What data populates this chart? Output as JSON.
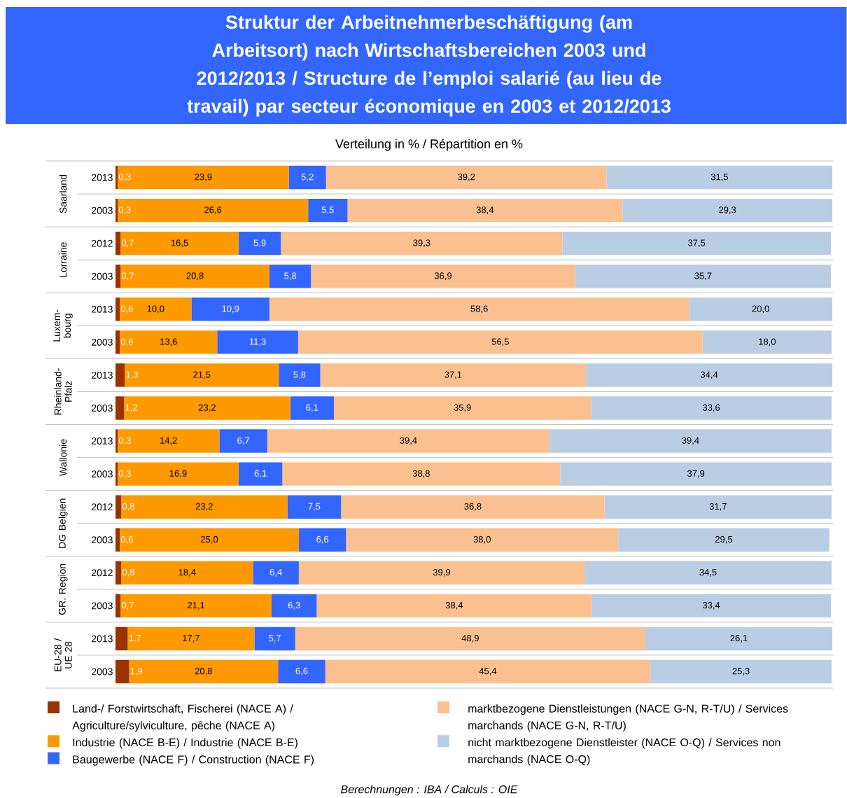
{
  "chart_data": {
    "type": "bar",
    "orientation": "horizontal",
    "stacked": true,
    "title": "Struktur der Arbeitnehmerbeschäftigung (am Arbeitsort) nach Wirtschaftsbereichen 2003 und 2012/2013 / Structure de l’emploi salarié (au lieu de travail) par secteur économique en 2003 et 2012/2013",
    "subtitle": "Verteilung in % / Répartition en %",
    "categories": [
      "2013",
      "2003",
      "2012",
      "2003",
      "2013",
      "2003",
      "2013",
      "2003",
      "2013",
      "2003",
      "2012",
      "2003",
      "2012",
      "2003",
      "2013",
      "2003"
    ],
    "annotations": [
      "Saarland",
      "Lorraine",
      "Luxem-bourg",
      "Rheinland-Pfalz",
      "Wallonie",
      "DG Belgien",
      "GR. Region",
      "EU-28 / UE 28",
      "Berechnungen : IBA / Calculs : OIE"
    ],
    "series": [
      {
        "name": "Land-/ Forstwirtschaft, Fischerei (NACE A) / Agriculture/sylviculture, pêche (NACE A)",
        "color": "#993300",
        "values": [
          0.3,
          0.3,
          0.7,
          0.7,
          0.6,
          0.6,
          1.3,
          1.2,
          0.3,
          0.3,
          0.8,
          0.6,
          0.8,
          0.7,
          1.7,
          1.9
        ],
        "value_labels": [
          "0,3",
          "0,3",
          "0,7",
          "0,7",
          "0,6",
          "0,6",
          "1,3",
          "1,2",
          "0,3",
          "0,3",
          "0,8",
          "0,6",
          "0,8",
          "0,7",
          "1,7",
          "1,9"
        ]
      },
      {
        "name": "Industrie (NACE B-E) / Industrie (NACE B-E)",
        "color": "#FF9900",
        "values": [
          23.9,
          26.6,
          16.5,
          20.8,
          10.0,
          13.6,
          21.5,
          23.2,
          14.2,
          16.9,
          23.2,
          25.0,
          18.4,
          21.1,
          17.7,
          20.8
        ],
        "value_labels": [
          "23,9",
          "26,6",
          "16,5",
          "20,8",
          "10,0",
          "13,6",
          "21,5",
          "23,2",
          "14,2",
          "16,9",
          "23,2",
          "25,0",
          "18,4",
          "21,1",
          "17,7",
          "20,8"
        ]
      },
      {
        "name": "Baugewerbe (NACE F) / Construction (NACE F)",
        "color": "#3366FF",
        "values": [
          5.2,
          5.5,
          5.9,
          5.8,
          10.9,
          11.3,
          5.8,
          6.1,
          6.7,
          6.1,
          7.5,
          6.6,
          6.4,
          6.3,
          5.7,
          6.6
        ],
        "value_labels": [
          "5,2",
          "5,5",
          "5,9",
          "5,8",
          "10,9",
          "11,3",
          "5,8",
          "6,1",
          "6,7",
          "6,1",
          "7,5",
          "6,6",
          "6,4",
          "6,3",
          "5,7",
          "6,6"
        ]
      },
      {
        "name": "marktbezogene Dienstleistungen (NACE G-N, R-T/U) / Services marchands (NACE G-N, R-T/U)",
        "color": "#FAC090",
        "values": [
          39.2,
          38.4,
          39.3,
          36.9,
          58.6,
          56.5,
          37.1,
          35.9,
          39.4,
          38.8,
          36.8,
          38.0,
          39.9,
          38.4,
          48.9,
          45.4
        ],
        "value_labels": [
          "39,2",
          "38,4",
          "39,3",
          "36,9",
          "58,6",
          "56,5",
          "37,1",
          "35,9",
          "39,4",
          "38,8",
          "36,8",
          "38,0",
          "39,9",
          "38,4",
          "48,9",
          "45,4"
        ]
      },
      {
        "name": "nicht marktbezogene Dienstleister (NACE O-Q) / Services non marchands (NACE O-Q)",
        "color": "#B9CDE5",
        "values": [
          31.5,
          29.3,
          37.5,
          35.7,
          20.0,
          18.0,
          34.4,
          33.6,
          39.4,
          37.9,
          31.7,
          29.5,
          34.5,
          33.4,
          26.1,
          25.3
        ],
        "value_labels": [
          "31,5",
          "29,3",
          "37,5",
          "35,7",
          "20,0",
          "18,0",
          "34,4",
          "33,6",
          "39,4",
          "37,9",
          "31,7",
          "29,5",
          "34,5",
          "33,4",
          "26,1",
          "25,3"
        ]
      }
    ],
    "xlim": [
      0,
      100.2
    ],
    "tick_labels": "y",
    "legend": "bottom"
  }
}
